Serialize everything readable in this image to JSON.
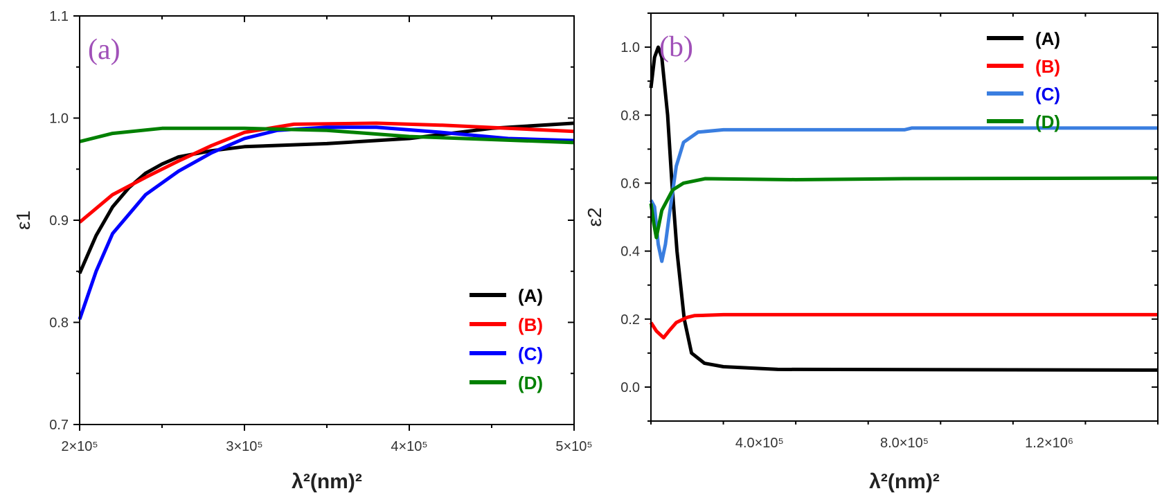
{
  "chart_data": [
    {
      "type": "line",
      "panel_label": "(a)",
      "xlabel": "λ²(nm)²",
      "ylabel": "ε1",
      "xlim": [
        200000,
        500000
      ],
      "ylim": [
        0.7,
        1.1
      ],
      "xticks": [
        200000,
        300000,
        400000,
        500000
      ],
      "xtick_labels": [
        "2×10⁵",
        "3×10⁵",
        "4×10⁵",
        "5×10⁵"
      ],
      "yticks": [
        0.7,
        0.8,
        0.9,
        1.0,
        1.1
      ],
      "ytick_labels": [
        "0.7",
        "0.8",
        "0.9",
        "1.0",
        "1.1"
      ],
      "grid": false,
      "legend_position": "bottom-right",
      "series": [
        {
          "name": "(A)",
          "color": "#000000",
          "x": [
            200000,
            210000,
            220000,
            230000,
            240000,
            250000,
            260000,
            280000,
            300000,
            350000,
            400000,
            450000,
            500000
          ],
          "y": [
            0.848,
            0.885,
            0.913,
            0.932,
            0.946,
            0.955,
            0.962,
            0.968,
            0.972,
            0.975,
            0.98,
            0.99,
            0.995
          ]
        },
        {
          "name": "(B)",
          "color": "#ff0000",
          "x": [
            200000,
            220000,
            240000,
            260000,
            280000,
            300000,
            330000,
            380000,
            420000,
            460000,
            500000
          ],
          "y": [
            0.898,
            0.925,
            0.942,
            0.958,
            0.973,
            0.986,
            0.994,
            0.995,
            0.993,
            0.99,
            0.987
          ]
        },
        {
          "name": "(C)",
          "color": "#0000ff",
          "x": [
            200000,
            210000,
            220000,
            240000,
            260000,
            280000,
            300000,
            320000,
            350000,
            380000,
            420000,
            460000,
            500000
          ],
          "y": [
            0.803,
            0.85,
            0.887,
            0.925,
            0.948,
            0.966,
            0.98,
            0.988,
            0.991,
            0.991,
            0.986,
            0.98,
            0.978
          ]
        },
        {
          "name": "(D)",
          "color": "#008000",
          "x": [
            200000,
            220000,
            250000,
            300000,
            350000,
            400000,
            450000,
            500000
          ],
          "y": [
            0.977,
            0.985,
            0.99,
            0.99,
            0.988,
            0.982,
            0.979,
            0.976
          ]
        }
      ]
    },
    {
      "type": "line",
      "panel_label": "(b)",
      "xlabel": "λ²(nm)²",
      "ylabel": "ε2",
      "xlim": [
        100000,
        1500000
      ],
      "ylim": [
        -0.1,
        1.1
      ],
      "xticks": [
        400000,
        800000,
        1200000
      ],
      "xtick_labels": [
        "4.0×10⁵",
        "8.0×10⁵",
        "1.2×10⁶"
      ],
      "yticks": [
        0.0,
        0.2,
        0.4,
        0.6,
        0.8,
        1.0
      ],
      "ytick_labels": [
        "0.0",
        "0.2",
        "0.4",
        "0.6",
        "0.8",
        "1.0"
      ],
      "grid": false,
      "legend_position": "top-right",
      "series": [
        {
          "name": "(A)",
          "color": "#000000",
          "x": [
            100000,
            110000,
            120000,
            130000,
            146000,
            158000,
            172000,
            192000,
            212000,
            248000,
            300000,
            450000,
            1500000
          ],
          "y": [
            0.88,
            0.97,
            1.0,
            0.97,
            0.8,
            0.6,
            0.4,
            0.2,
            0.1,
            0.07,
            0.06,
            0.052,
            0.05
          ]
        },
        {
          "name": "(B)",
          "color": "#ff0000",
          "x": [
            100000,
            115000,
            135000,
            150000,
            170000,
            200000,
            220000,
            300000,
            1500000
          ],
          "y": [
            0.19,
            0.165,
            0.145,
            0.165,
            0.19,
            0.205,
            0.21,
            0.213,
            0.213
          ]
        },
        {
          "name": "(C)",
          "color": "#3a7ee0",
          "x": [
            100000,
            110000,
            120000,
            130000,
            140000,
            150000,
            170000,
            190000,
            230000,
            300000,
            800000,
            820000,
            1500000
          ],
          "y": [
            0.55,
            0.53,
            0.42,
            0.37,
            0.42,
            0.5,
            0.65,
            0.72,
            0.75,
            0.757,
            0.757,
            0.762,
            0.762
          ]
        },
        {
          "name": "(D)",
          "color": "#008000",
          "x": [
            100000,
            108000,
            115000,
            130000,
            160000,
            190000,
            250000,
            500000,
            800000,
            1500000
          ],
          "y": [
            0.54,
            0.48,
            0.44,
            0.52,
            0.58,
            0.6,
            0.613,
            0.61,
            0.613,
            0.615
          ]
        }
      ]
    }
  ],
  "colors": {
    "panel_label": "#a050b8",
    "axis": "#000000"
  }
}
